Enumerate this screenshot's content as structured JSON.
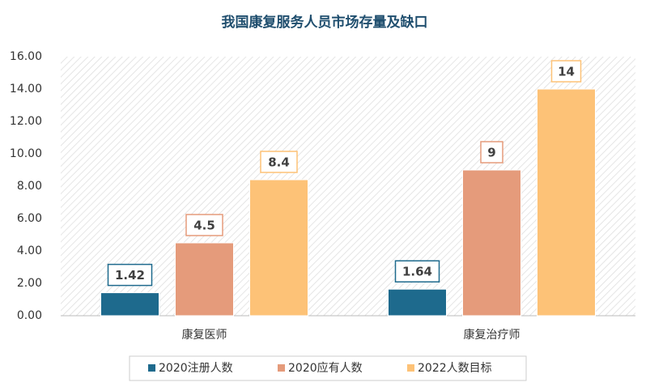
{
  "chart_data": {
    "type": "bar",
    "title": "我国康复服务人员市场存量及缺口",
    "categories": [
      "康复医师",
      "康复治疗师"
    ],
    "series": [
      {
        "name": "2020注册人数",
        "color": "#1e6a8d",
        "values": [
          1.42,
          1.64
        ]
      },
      {
        "name": "2020应有人数",
        "color": "#e59b7b",
        "values": [
          4.5,
          9
        ]
      },
      {
        "name": "2022人数目标",
        "color": "#fdc277",
        "values": [
          8.4,
          14
        ]
      }
    ],
    "ylim": [
      0,
      16
    ],
    "yticks": [
      {
        "value": 0,
        "label": "0.00"
      },
      {
        "value": 2,
        "label": "2.00"
      },
      {
        "value": 4,
        "label": "4.00"
      },
      {
        "value": 6,
        "label": "6.00"
      },
      {
        "value": 8,
        "label": "8.00"
      },
      {
        "value": 10,
        "label": "10.00"
      },
      {
        "value": 12,
        "label": "12.00"
      },
      {
        "value": 14,
        "label": "14.00"
      },
      {
        "value": 16,
        "label": "16.00"
      }
    ],
    "legend": "bottom"
  }
}
